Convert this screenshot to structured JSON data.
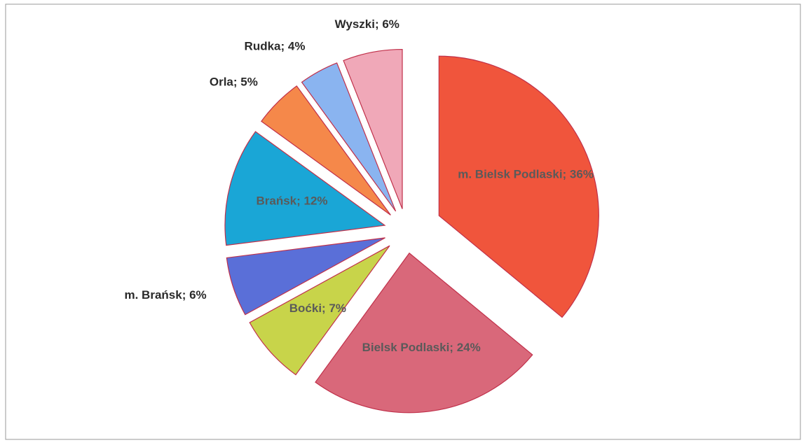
{
  "chart_data": {
    "type": "pie",
    "value_labels": [
      "m. Bielsk Podlaski; 36%",
      "Bielsk Podlaski; 24%",
      "Boćki; 7%",
      "m. Brańsk; 6%",
      "Brańsk; 12%",
      "Orla; 5%",
      "Rudka; 4%",
      "Wyszki; 6%"
    ],
    "values": [
      36,
      24,
      7,
      6,
      12,
      5,
      4,
      6
    ],
    "colors": [
      "#f0553c",
      "#d9687a",
      "#c8d44a",
      "#5a6fd8",
      "#1aa6d6",
      "#f5884a",
      "#8ab4f0",
      "#f0a8b8"
    ]
  }
}
